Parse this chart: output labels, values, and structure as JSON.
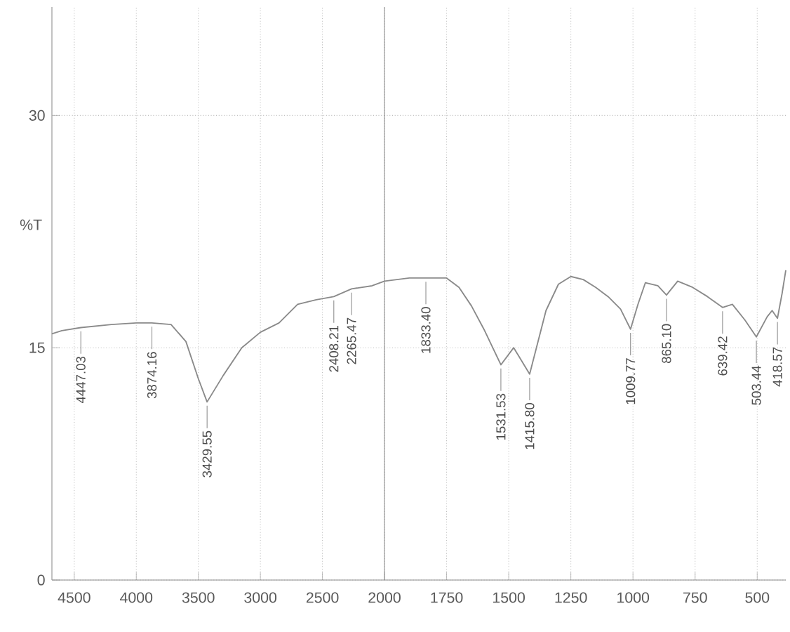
{
  "chart_data": [
    {
      "type": "line",
      "ylabel": "%T",
      "x": [
        4680,
        4600,
        4447.03,
        4200,
        4000,
        3874.16,
        3720,
        3600,
        3500,
        3429.55,
        3300,
        3150,
        3000,
        2850,
        2700,
        2550,
        2408.21,
        2265.47,
        2100,
        2000
      ],
      "series": [
        {
          "color": "#8a8a8a",
          "values": [
            15.9,
            16.1,
            16.3,
            16.5,
            16.6,
            16.6,
            16.5,
            15.4,
            13.0,
            11.5,
            13.2,
            15.0,
            16.0,
            16.6,
            17.8,
            18.1,
            18.3,
            18.8,
            19.0,
            19.3
          ]
        }
      ],
      "xlim": [
        4680,
        2000
      ],
      "ylim": [
        0,
        37
      ],
      "xticks": [
        4500,
        4000,
        3500,
        3000,
        2500,
        2000
      ],
      "yticks": [
        0,
        15,
        30
      ],
      "grid": true,
      "line_style": "solid",
      "marker": "none",
      "annotations": [
        {
          "text": "4447.03",
          "x": 4447.03,
          "y": 16.3
        },
        {
          "text": "3874.16",
          "x": 3874.16,
          "y": 16.6
        },
        {
          "text": "3429.55",
          "x": 3429.55,
          "y": 11.5
        },
        {
          "text": "2408.21",
          "x": 2408.21,
          "y": 18.3
        },
        {
          "text": "2265.47",
          "x": 2265.47,
          "y": 18.8
        }
      ]
    },
    {
      "type": "line",
      "x": [
        2000,
        1900,
        1833.4,
        1750,
        1700,
        1650,
        1600,
        1531.53,
        1480,
        1415.8,
        1350,
        1300,
        1250,
        1200,
        1150,
        1100,
        1050,
        1009.77,
        980,
        950,
        900,
        865.1,
        820,
        760,
        700,
        639.42,
        600,
        550,
        503.44,
        460,
        440,
        418.57,
        400,
        385
      ],
      "series": [
        {
          "color": "#8a8a8a",
          "values": [
            19.3,
            19.5,
            19.5,
            19.5,
            18.9,
            17.7,
            16.2,
            13.9,
            15.0,
            13.3,
            17.4,
            19.1,
            19.6,
            19.4,
            18.9,
            18.3,
            17.5,
            16.2,
            17.8,
            19.2,
            19.0,
            18.4,
            19.3,
            18.9,
            18.3,
            17.6,
            17.8,
            16.8,
            15.7,
            17.0,
            17.4,
            16.9,
            18.5,
            20.0
          ]
        }
      ],
      "xlim": [
        2000,
        385
      ],
      "ylim": [
        0,
        37
      ],
      "xticks": [
        1750,
        1500,
        1250,
        1000,
        750,
        500
      ],
      "yticks": [
        0,
        15,
        30
      ],
      "tick_labels": "x",
      "grid": true,
      "line_style": "solid",
      "marker": "none",
      "annotations": [
        {
          "text": "1833.40",
          "x": 1833.4,
          "y": 19.5
        },
        {
          "text": "1531.53",
          "x": 1531.53,
          "y": 13.9
        },
        {
          "text": "1415.80",
          "x": 1415.8,
          "y": 13.3
        },
        {
          "text": "1009.77",
          "x": 1009.77,
          "y": 16.2
        },
        {
          "text": "865.10",
          "x": 865.1,
          "y": 18.4
        },
        {
          "text": "639.42",
          "x": 639.42,
          "y": 17.6
        },
        {
          "text": "503.44",
          "x": 503.44,
          "y": 15.7
        },
        {
          "text": "418.57",
          "x": 418.57,
          "y": 16.9
        }
      ]
    }
  ]
}
